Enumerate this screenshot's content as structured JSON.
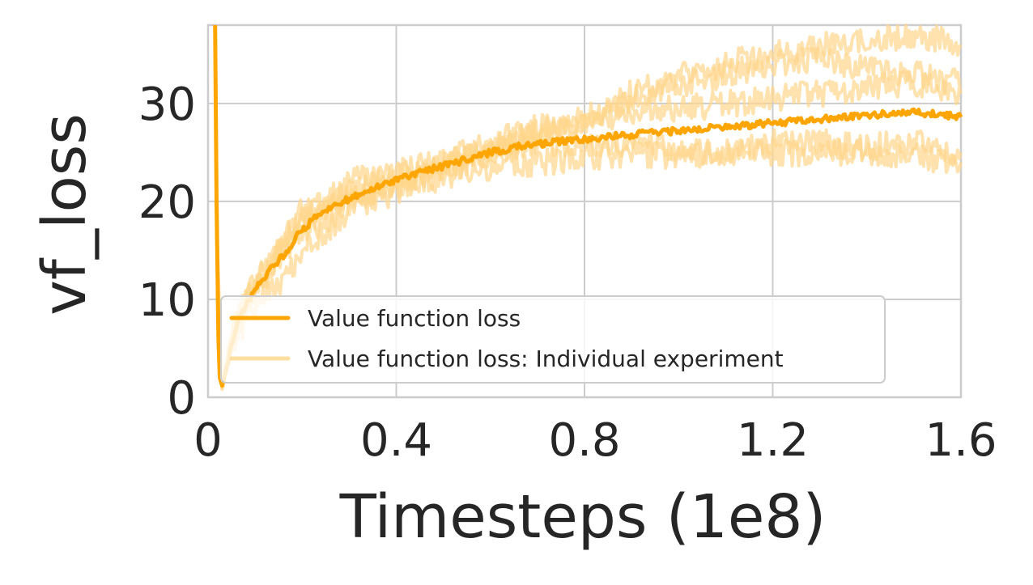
{
  "chart_data": {
    "type": "line",
    "title": "",
    "xlabel": "Timesteps (1e8)",
    "ylabel": "vf_loss",
    "xlim": [
      0,
      1.6
    ],
    "ylim": [
      0,
      38
    ],
    "xticks": [
      0,
      0.4,
      0.8,
      1.2,
      1.6
    ],
    "xtick_labels": [
      "0",
      "0.4",
      "0.8",
      "1.2",
      "1.6"
    ],
    "yticks": [
      0,
      10,
      20,
      30
    ],
    "ytick_labels": [
      "0",
      "10",
      "20",
      "30"
    ],
    "grid": true,
    "legend_position": "lower-right",
    "colors": {
      "mean": "#ffa500",
      "individual": "#ffd68a"
    },
    "series": [
      {
        "name": "Value function loss",
        "role": "mean",
        "x": [
          0.015,
          0.018,
          0.022,
          0.025,
          0.03,
          0.04,
          0.05,
          0.07,
          0.1,
          0.13,
          0.16,
          0.19,
          0.22,
          0.25,
          0.3,
          0.35,
          0.4,
          0.45,
          0.5,
          0.55,
          0.6,
          0.65,
          0.7,
          0.75,
          0.8,
          0.85,
          0.9,
          0.95,
          1.0,
          1.05,
          1.1,
          1.15,
          1.2,
          1.25,
          1.3,
          1.35,
          1.4,
          1.45,
          1.5,
          1.55,
          1.6
        ],
        "y": [
          38,
          20,
          6,
          2,
          1.2,
          3,
          5.5,
          8.5,
          11,
          13,
          14.5,
          16.5,
          18,
          19,
          20.3,
          21.3,
          22.2,
          23,
          23.6,
          24.3,
          25,
          25.5,
          25.8,
          26.1,
          26.3,
          26.6,
          26.8,
          27,
          27.2,
          27.4,
          27.6,
          27.8,
          28,
          28.2,
          28.4,
          28.6,
          28.8,
          29,
          29.1,
          28.9,
          28.6
        ]
      },
      {
        "name": "Value function loss: Individual experiment",
        "role": "individual",
        "x": [
          0.02,
          0.03,
          0.05,
          0.08,
          0.12,
          0.16,
          0.2,
          0.25,
          0.3,
          0.4,
          0.5,
          0.6,
          0.7,
          0.8,
          0.9,
          1.0,
          1.1,
          1.2,
          1.3,
          1.4,
          1.5,
          1.6
        ],
        "y": [
          15,
          1,
          7,
          10,
          13,
          16,
          19,
          20,
          22,
          23,
          24,
          25,
          26,
          26,
          26,
          25,
          25,
          26,
          26,
          25.5,
          26,
          25
        ]
      },
      {
        "name": "Value function loss: Individual experiment",
        "role": "individual",
        "x": [
          0.02,
          0.03,
          0.05,
          0.08,
          0.12,
          0.16,
          0.2,
          0.25,
          0.3,
          0.4,
          0.5,
          0.6,
          0.7,
          0.8,
          0.9,
          1.0,
          1.1,
          1.2,
          1.3,
          1.4,
          1.5,
          1.6
        ],
        "y": [
          12,
          0.8,
          5,
          8,
          10,
          12,
          15,
          17,
          19,
          21,
          23,
          25,
          27,
          28,
          31,
          33,
          34,
          35,
          36,
          36.5,
          37,
          36
        ]
      },
      {
        "name": "Value function loss: Individual experiment",
        "role": "individual",
        "x": [
          0.02,
          0.03,
          0.05,
          0.08,
          0.12,
          0.16,
          0.2,
          0.25,
          0.3,
          0.4,
          0.5,
          0.6,
          0.7,
          0.8,
          0.9,
          1.0,
          1.1,
          1.2,
          1.3,
          1.4,
          1.5,
          1.6
        ],
        "y": [
          10,
          1.5,
          6,
          9,
          12,
          15,
          17,
          18,
          20,
          22,
          23.5,
          25.5,
          27,
          28.5,
          30.5,
          32,
          33,
          34,
          34.5,
          33.5,
          33,
          32
        ]
      },
      {
        "name": "Value function loss: Individual experiment",
        "role": "individual",
        "x": [
          0.02,
          0.03,
          0.05,
          0.08,
          0.12,
          0.16,
          0.2,
          0.25,
          0.3,
          0.4,
          0.5,
          0.6,
          0.7,
          0.8,
          0.9,
          1.0,
          1.1,
          1.2,
          1.3,
          1.4,
          1.5,
          1.6
        ],
        "y": [
          8,
          1,
          6,
          10,
          13,
          16,
          18,
          19,
          20.5,
          21.5,
          22.5,
          23.5,
          24,
          24.5,
          25,
          24.5,
          25,
          25,
          25,
          25,
          24.5,
          24
        ]
      },
      {
        "name": "Value function loss: Individual experiment",
        "role": "individual",
        "x": [
          0.02,
          0.03,
          0.05,
          0.08,
          0.12,
          0.16,
          0.2,
          0.25,
          0.3,
          0.4,
          0.5,
          0.6,
          0.7,
          0.8,
          0.9,
          1.0,
          1.1,
          1.2,
          1.3,
          1.4,
          1.5,
          1.6
        ],
        "y": [
          10,
          1.2,
          6.5,
          9.5,
          12.5,
          15.5,
          18.5,
          19.5,
          21,
          22.5,
          24,
          26,
          27.5,
          28,
          29,
          29.5,
          30,
          30.5,
          31,
          31.5,
          32,
          31
        ]
      }
    ],
    "legend": [
      {
        "label": "Value function loss",
        "role": "mean"
      },
      {
        "label": "Value function loss: Individual experiment",
        "role": "individual"
      }
    ]
  }
}
